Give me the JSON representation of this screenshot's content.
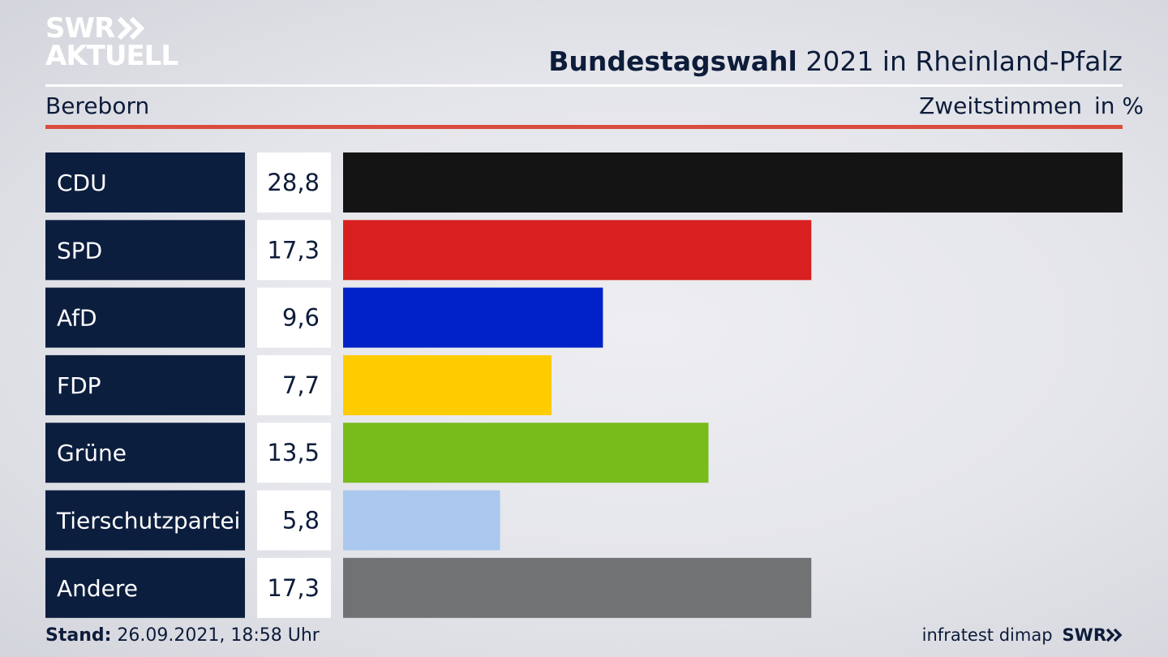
{
  "logo": {
    "line1": "SWR",
    "line2": "AKTUELL",
    "icon": "double-chevron-icon"
  },
  "header": {
    "title_bold": "Bundestagswahl",
    "title_rest": " 2021 in Rheinland-Pfalz",
    "location": "Bereborn",
    "measure": "Zweitstimmen",
    "unit": "in %"
  },
  "colors": {
    "label_bg": "#0c1e3e",
    "accent_rule": "#d94d3e",
    "text": "#0d1c3a"
  },
  "chart_data": {
    "type": "bar",
    "orientation": "horizontal",
    "categories": [
      "CDU",
      "SPD",
      "AfD",
      "FDP",
      "Grüne",
      "Tierschutzpartei",
      "Andere"
    ],
    "values": [
      28.8,
      17.3,
      9.6,
      7.7,
      13.5,
      5.8,
      17.3
    ],
    "value_labels": [
      "28,8",
      "17,3",
      "9,6",
      "7,7",
      "13,5",
      "5,8",
      "17,3"
    ],
    "colors": [
      "#141414",
      "#d7201f",
      "#0022c8",
      "#ffcc00",
      "#78bc1c",
      "#aac8ee",
      "#717274"
    ],
    "xlim": [
      0,
      28.8
    ],
    "grid": false
  },
  "footer": {
    "stand_label": "Stand:",
    "stand_value": " 26.09.2021, 18:58 Uhr",
    "source": "infratest dimap",
    "brand": "SWR"
  }
}
